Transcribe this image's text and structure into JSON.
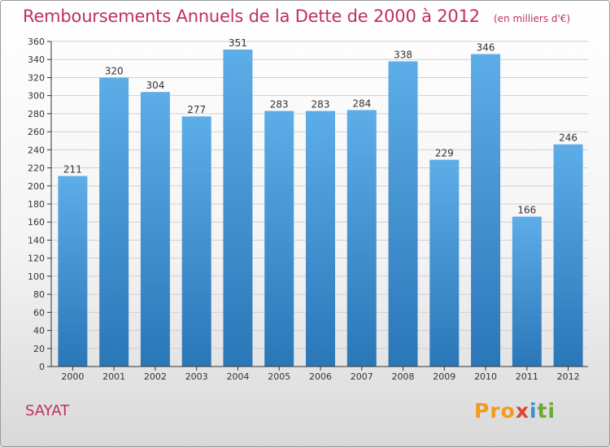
{
  "chart_data": {
    "type": "bar",
    "title": "Remboursements Annuels de la Dette de 2000 à 2012",
    "unit": "(en milliers d'€)",
    "categories": [
      "2000",
      "2001",
      "2002",
      "2003",
      "2004",
      "2005",
      "2006",
      "2007",
      "2008",
      "2009",
      "2010",
      "2011",
      "2012"
    ],
    "values": [
      211,
      320,
      304,
      277,
      351,
      283,
      283,
      284,
      338,
      229,
      346,
      166,
      246
    ],
    "ylim": [
      0,
      360
    ],
    "yticks": [
      0,
      20,
      40,
      60,
      80,
      100,
      120,
      140,
      160,
      180,
      200,
      220,
      240,
      260,
      280,
      300,
      320,
      340,
      360
    ],
    "grid": true,
    "bar_color_top": "#5dade8",
    "bar_color_bottom": "#2a77b8"
  },
  "footer": {
    "commune": "SAYAT",
    "logo": [
      "Pro",
      "x",
      "i",
      "ti"
    ]
  },
  "colors": {
    "title": "#c0305a",
    "grid": "#d0d0d0",
    "axis": "#333333"
  }
}
